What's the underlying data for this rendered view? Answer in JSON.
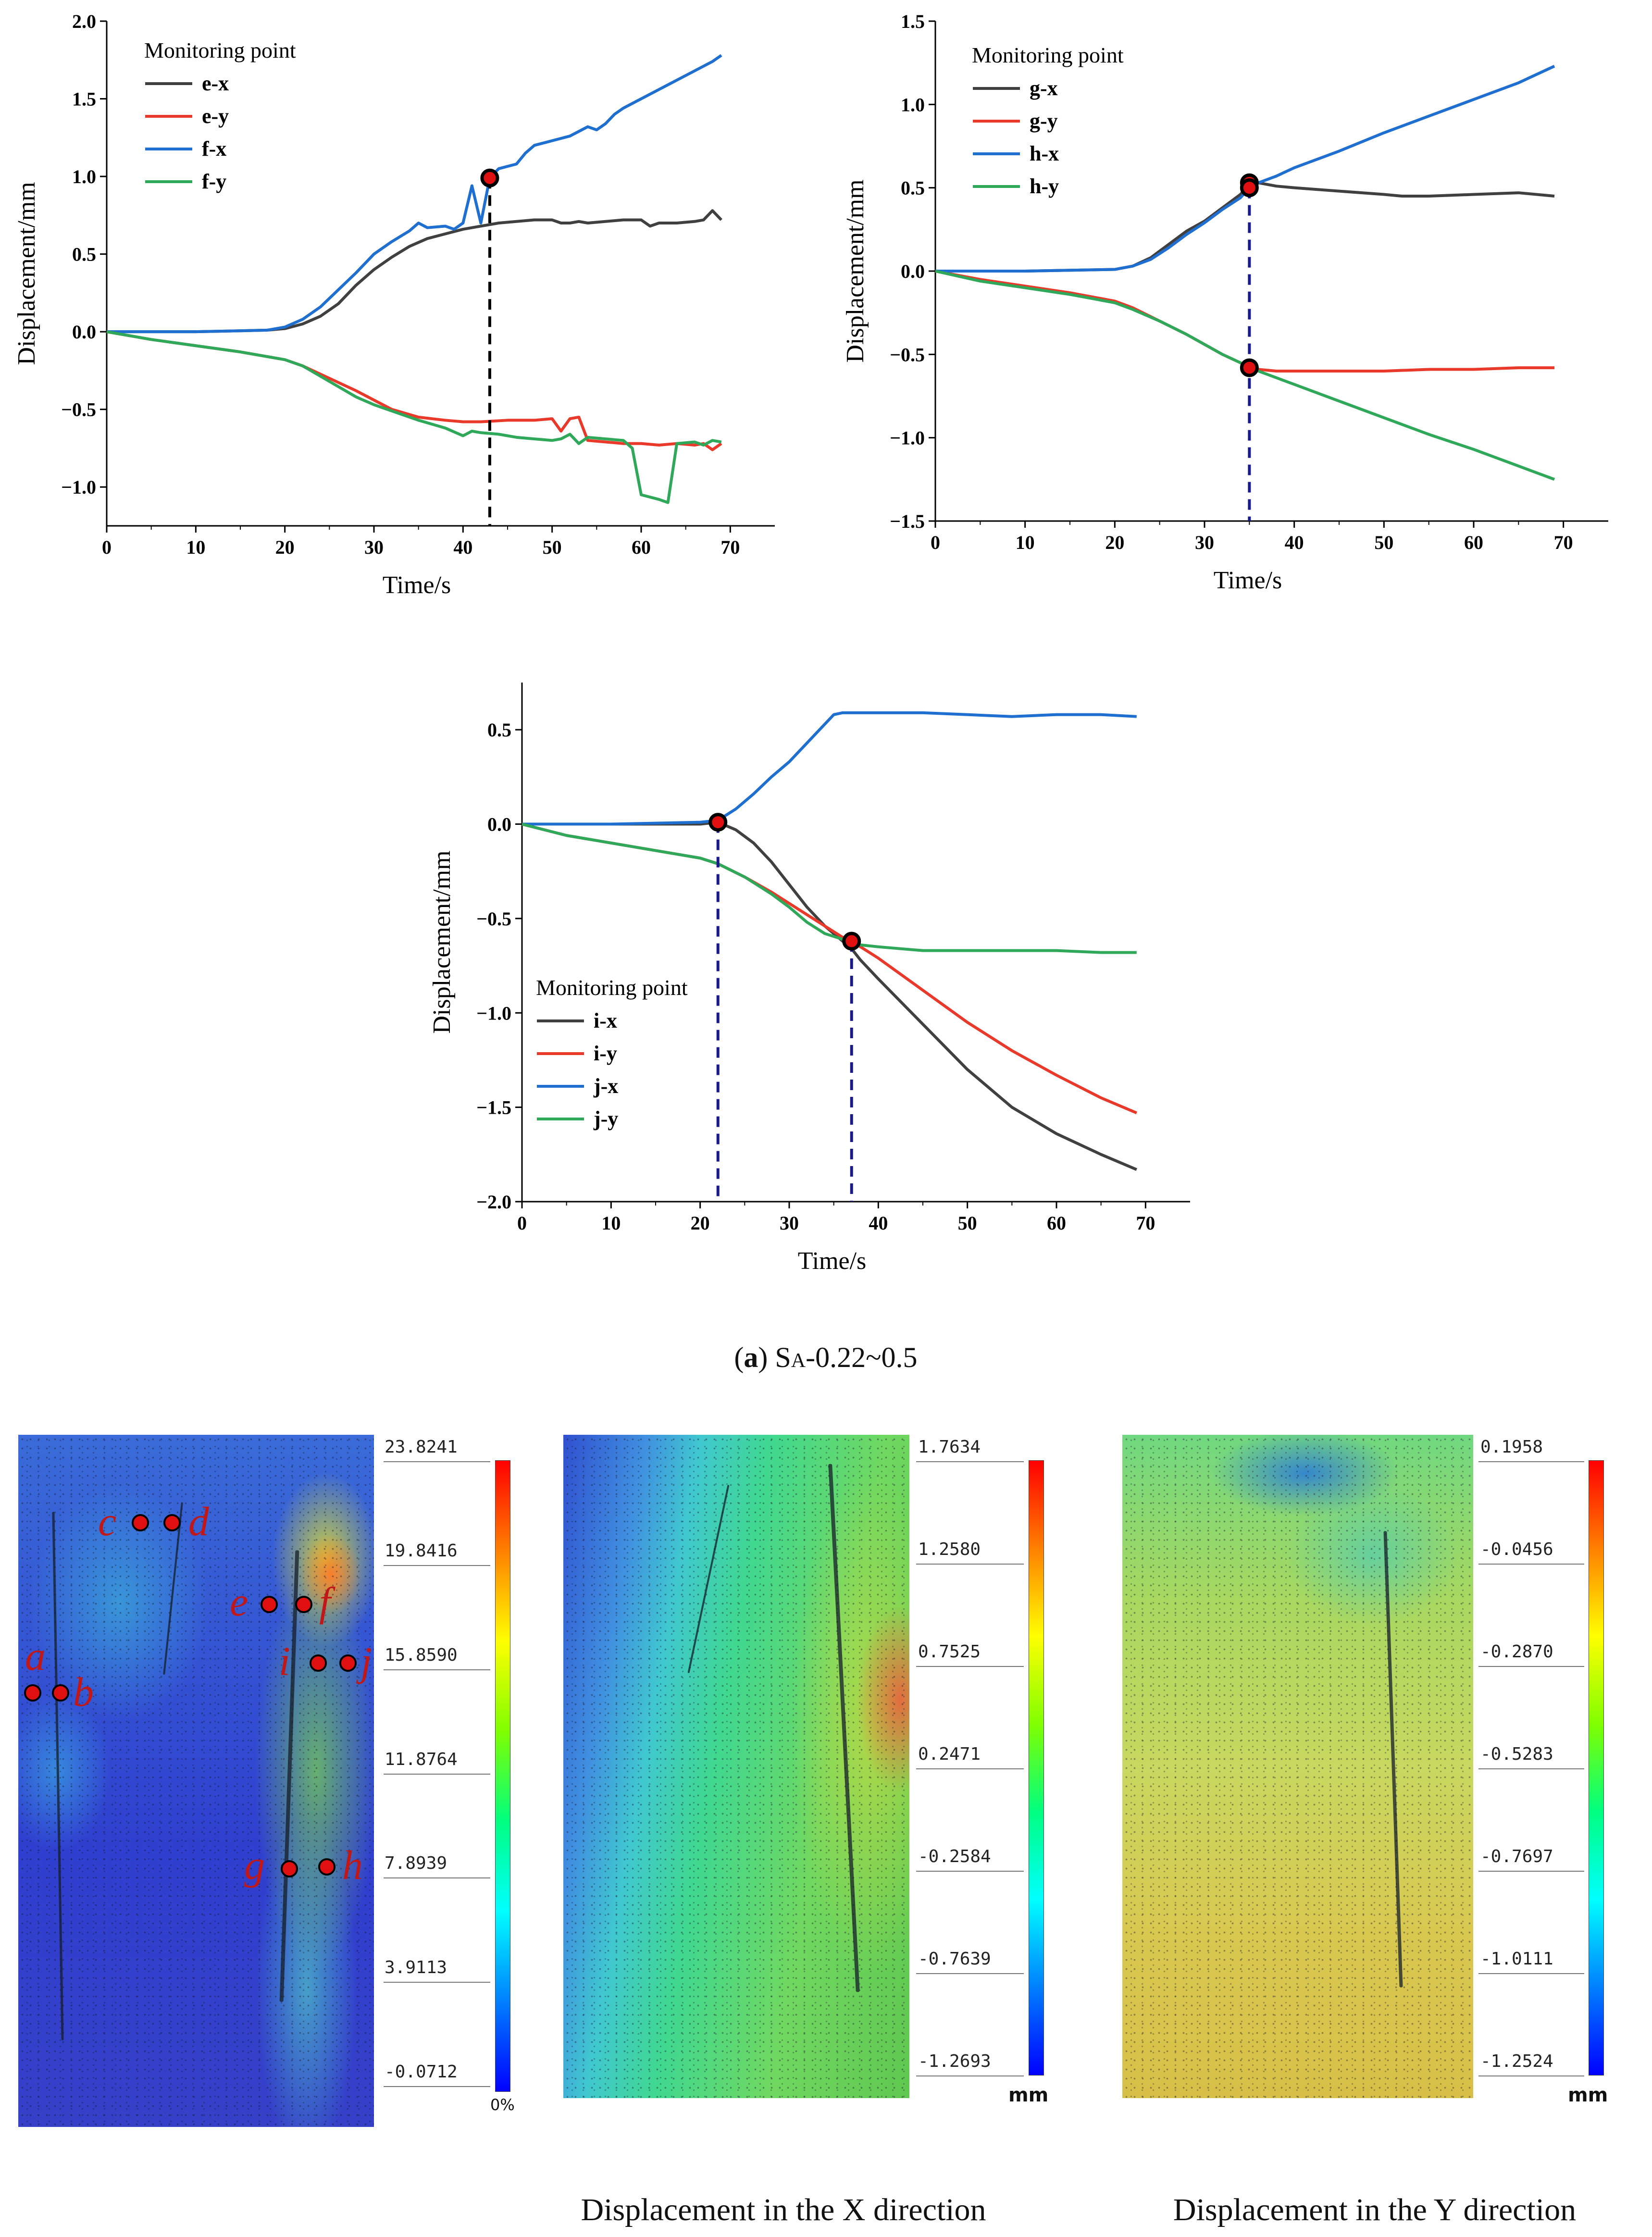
{
  "chart_data": [
    {
      "type": "line",
      "title": "",
      "xlabel": "Time/s",
      "ylabel": "Displacement/mm",
      "xlim": [
        0,
        75
      ],
      "ylim": [
        -1.25,
        2.0
      ],
      "xticks": [
        "0",
        "10",
        "20",
        "30",
        "40",
        "50",
        "60",
        "70"
      ],
      "yticks": [
        "2.0",
        "1.5",
        "1.0",
        "0.5",
        "0.0",
        "-0.5",
        "-1.0"
      ],
      "legend_title": "Monitoring point",
      "legend_position": "top-left",
      "series": [
        {
          "name": "e-x",
          "color": "#404040",
          "x": [
            0,
            10,
            18,
            20,
            22,
            24,
            26,
            28,
            30,
            32,
            34,
            36,
            38,
            40,
            42,
            44,
            46,
            48,
            50,
            51,
            52,
            53,
            54,
            56,
            58,
            60,
            61,
            62,
            64,
            66,
            67,
            68,
            69
          ],
          "y": [
            0,
            0,
            0.01,
            0.02,
            0.05,
            0.1,
            0.18,
            0.3,
            0.4,
            0.48,
            0.55,
            0.6,
            0.63,
            0.66,
            0.68,
            0.7,
            0.71,
            0.72,
            0.72,
            0.7,
            0.7,
            0.71,
            0.7,
            0.71,
            0.72,
            0.72,
            0.68,
            0.7,
            0.7,
            0.71,
            0.72,
            0.78,
            0.72
          ]
        },
        {
          "name": "e-y",
          "color": "#e8392a",
          "x": [
            0,
            5,
            10,
            15,
            20,
            22,
            25,
            28,
            30,
            32,
            35,
            38,
            40,
            42,
            45,
            48,
            50,
            51,
            52,
            53,
            54,
            56,
            58,
            60,
            62,
            64,
            66,
            67,
            68,
            69
          ],
          "y": [
            0,
            -0.05,
            -0.09,
            -0.13,
            -0.18,
            -0.22,
            -0.3,
            -0.38,
            -0.44,
            -0.5,
            -0.55,
            -0.57,
            -0.58,
            -0.58,
            -0.57,
            -0.57,
            -0.56,
            -0.64,
            -0.56,
            -0.55,
            -0.7,
            -0.71,
            -0.72,
            -0.72,
            -0.73,
            -0.72,
            -0.73,
            -0.72,
            -0.76,
            -0.72
          ]
        },
        {
          "name": "f-x",
          "color": "#1f6fd1",
          "x": [
            0,
            10,
            18,
            20,
            22,
            24,
            26,
            28,
            30,
            32,
            34,
            35,
            36,
            38,
            39,
            40,
            41,
            42,
            43,
            44,
            46,
            47,
            48,
            50,
            52,
            54,
            55,
            56,
            57,
            58,
            60,
            62,
            64,
            66,
            68,
            69
          ],
          "y": [
            0,
            0,
            0.01,
            0.03,
            0.08,
            0.16,
            0.27,
            0.38,
            0.5,
            0.58,
            0.65,
            0.7,
            0.67,
            0.68,
            0.66,
            0.7,
            0.94,
            0.7,
            0.99,
            1.05,
            1.08,
            1.15,
            1.2,
            1.23,
            1.26,
            1.32,
            1.3,
            1.34,
            1.4,
            1.44,
            1.5,
            1.56,
            1.62,
            1.68,
            1.74,
            1.78
          ]
        },
        {
          "name": "f-y",
          "color": "#2fa85a",
          "x": [
            0,
            5,
            10,
            15,
            20,
            22,
            25,
            28,
            30,
            33,
            35,
            38,
            40,
            41,
            42,
            44,
            46,
            48,
            50,
            51,
            52,
            53,
            54,
            56,
            58,
            59,
            60,
            62,
            63,
            64,
            66,
            67,
            68,
            69
          ],
          "y": [
            0,
            -0.05,
            -0.09,
            -0.13,
            -0.18,
            -0.22,
            -0.32,
            -0.42,
            -0.47,
            -0.53,
            -0.57,
            -0.62,
            -0.67,
            -0.64,
            -0.65,
            -0.66,
            -0.68,
            -0.69,
            -0.7,
            -0.69,
            -0.66,
            -0.72,
            -0.68,
            -0.69,
            -0.7,
            -0.75,
            -1.05,
            -1.08,
            -1.1,
            -0.72,
            -0.71,
            -0.73,
            -0.7,
            -0.71
          ]
        }
      ],
      "annotations": [
        {
          "x": 43,
          "y": 0.99,
          "label": ""
        }
      ],
      "marker_vline_x": 43
    },
    {
      "type": "line",
      "title": "",
      "xlabel": "Time/s",
      "ylabel": "Displacement/mm",
      "xlim": [
        0,
        75
      ],
      "ylim": [
        -1.5,
        1.5
      ],
      "xticks": [
        "0",
        "10",
        "20",
        "30",
        "40",
        "50",
        "60",
        "70"
      ],
      "yticks": [
        "1.5",
        "1.0",
        "0.5",
        "0.0",
        "-0.5",
        "-1.0",
        "-1.5"
      ],
      "legend_title": "Monitoring point",
      "legend_position": "top-left",
      "series": [
        {
          "name": "g-x",
          "color": "#404040",
          "x": [
            0,
            10,
            20,
            22,
            24,
            26,
            28,
            30,
            32,
            34,
            35,
            36,
            38,
            40,
            45,
            50,
            52,
            55,
            60,
            65,
            69
          ],
          "y": [
            0,
            0,
            0.01,
            0.03,
            0.08,
            0.16,
            0.24,
            0.3,
            0.38,
            0.46,
            0.52,
            0.53,
            0.51,
            0.5,
            0.48,
            0.46,
            0.45,
            0.45,
            0.46,
            0.47,
            0.45
          ]
        },
        {
          "name": "g-y",
          "color": "#e8392a",
          "x": [
            0,
            5,
            10,
            15,
            20,
            22,
            25,
            28,
            30,
            32,
            34,
            35,
            36,
            38,
            40,
            45,
            50,
            55,
            60,
            65,
            69
          ],
          "y": [
            0,
            -0.05,
            -0.09,
            -0.13,
            -0.18,
            -0.22,
            -0.3,
            -0.38,
            -0.44,
            -0.5,
            -0.55,
            -0.58,
            -0.59,
            -0.6,
            -0.6,
            -0.6,
            -0.6,
            -0.59,
            -0.59,
            -0.58,
            -0.58
          ]
        },
        {
          "name": "h-x",
          "color": "#1f6fd1",
          "x": [
            0,
            10,
            20,
            22,
            24,
            26,
            28,
            30,
            32,
            34,
            35,
            36,
            38,
            40,
            45,
            50,
            55,
            60,
            65,
            69
          ],
          "y": [
            0,
            0,
            0.01,
            0.03,
            0.07,
            0.14,
            0.22,
            0.29,
            0.37,
            0.44,
            0.5,
            0.53,
            0.57,
            0.62,
            0.72,
            0.83,
            0.93,
            1.03,
            1.13,
            1.23
          ]
        },
        {
          "name": "h-y",
          "color": "#2fa85a",
          "x": [
            0,
            5,
            10,
            15,
            20,
            22,
            25,
            28,
            30,
            32,
            34,
            35,
            36,
            38,
            40,
            45,
            50,
            55,
            60,
            65,
            69
          ],
          "y": [
            0,
            -0.06,
            -0.1,
            -0.14,
            -0.19,
            -0.23,
            -0.3,
            -0.38,
            -0.44,
            -0.5,
            -0.55,
            -0.58,
            -0.6,
            -0.64,
            -0.68,
            -0.78,
            -0.88,
            -0.98,
            -1.07,
            -1.17,
            -1.25
          ]
        }
      ],
      "annotations": [
        {
          "x": 35,
          "y": 0.53,
          "label": ""
        },
        {
          "x": 35,
          "y": 0.5,
          "label": ""
        },
        {
          "x": 35,
          "y": -0.58,
          "label": ""
        }
      ],
      "marker_vline_x": 35
    },
    {
      "type": "line",
      "title": "",
      "xlabel": "Time/s",
      "ylabel": "Displacement/mm",
      "xlim": [
        0,
        75
      ],
      "ylim": [
        -2.0,
        0.75
      ],
      "xticks": [
        "0",
        "10",
        "20",
        "30",
        "40",
        "50",
        "60",
        "70"
      ],
      "yticks": [
        "0.5",
        "0.0",
        "-0.5",
        "-1.0",
        "-1.5",
        "-2.0"
      ],
      "legend_title": "Monitoring point",
      "legend_position": "bottom-left",
      "series": [
        {
          "name": "i-x",
          "color": "#404040",
          "x": [
            0,
            10,
            20,
            22,
            24,
            26,
            28,
            30,
            32,
            34,
            36,
            37,
            38,
            40,
            45,
            50,
            55,
            60,
            65,
            69
          ],
          "y": [
            0,
            0,
            0,
            0.01,
            -0.03,
            -0.1,
            -0.2,
            -0.32,
            -0.44,
            -0.54,
            -0.62,
            -0.66,
            -0.72,
            -0.82,
            -1.06,
            -1.3,
            -1.5,
            -1.64,
            -1.75,
            -1.83
          ]
        },
        {
          "name": "i-y",
          "color": "#e8392a",
          "x": [
            0,
            5,
            10,
            15,
            20,
            22,
            25,
            28,
            30,
            32,
            34,
            36,
            37,
            38,
            40,
            45,
            50,
            55,
            60,
            65,
            69
          ],
          "y": [
            0,
            -0.06,
            -0.1,
            -0.14,
            -0.18,
            -0.21,
            -0.28,
            -0.36,
            -0.42,
            -0.48,
            -0.54,
            -0.6,
            -0.62,
            -0.65,
            -0.71,
            -0.88,
            -1.05,
            -1.2,
            -1.33,
            -1.45,
            -1.53
          ]
        },
        {
          "name": "j-x",
          "color": "#1f6fd1",
          "x": [
            0,
            10,
            20,
            22,
            24,
            26,
            28,
            30,
            32,
            34,
            35,
            36,
            38,
            40,
            45,
            50,
            55,
            60,
            65,
            69
          ],
          "y": [
            0,
            0,
            0.01,
            0.02,
            0.08,
            0.16,
            0.25,
            0.33,
            0.43,
            0.53,
            0.58,
            0.59,
            0.59,
            0.59,
            0.59,
            0.58,
            0.57,
            0.58,
            0.58,
            0.57
          ]
        },
        {
          "name": "j-y",
          "color": "#2fa85a",
          "x": [
            0,
            5,
            10,
            15,
            20,
            22,
            25,
            28,
            30,
            32,
            34,
            36,
            37,
            38,
            40,
            45,
            50,
            55,
            60,
            65,
            69
          ],
          "y": [
            0,
            -0.06,
            -0.1,
            -0.14,
            -0.18,
            -0.21,
            -0.28,
            -0.37,
            -0.44,
            -0.52,
            -0.58,
            -0.61,
            -0.62,
            -0.64,
            -0.65,
            -0.67,
            -0.67,
            -0.67,
            -0.67,
            -0.68,
            -0.68
          ]
        }
      ],
      "annotations": [
        {
          "x": 22,
          "y": 0.01,
          "label": ""
        },
        {
          "x": 37,
          "y": -0.62,
          "label": ""
        }
      ],
      "marker_vline_x": [
        22,
        37
      ]
    }
  ],
  "caption_a": {
    "prefix": "(",
    "letter": "a",
    "suffix": ") ",
    "s": "S",
    "sub": "A",
    "rest": "-0.22~0.5"
  },
  "panels": {
    "strain": {
      "unit": "0%",
      "ticks": [
        "23.8241",
        "19.8416",
        "15.8590",
        "11.8764",
        "7.8939",
        "3.9113",
        "-0.0712"
      ],
      "points": [
        "a",
        "b",
        "c",
        "d",
        "e",
        "f",
        "g",
        "h",
        "i",
        "j"
      ]
    },
    "disp_x": {
      "unit": "mm",
      "ticks": [
        "1.7634",
        "1.2580",
        "0.7525",
        "0.2471",
        "-0.2584",
        "-0.7639",
        "-1.2693"
      ],
      "caption": "Displacement in the X direction"
    },
    "disp_y": {
      "unit": "mm",
      "ticks": [
        "0.1958",
        "-0.0456",
        "-0.2870",
        "-0.5283",
        "-0.7697",
        "-1.0111",
        "-1.2524"
      ],
      "caption": "Displacement in the Y direction"
    }
  }
}
